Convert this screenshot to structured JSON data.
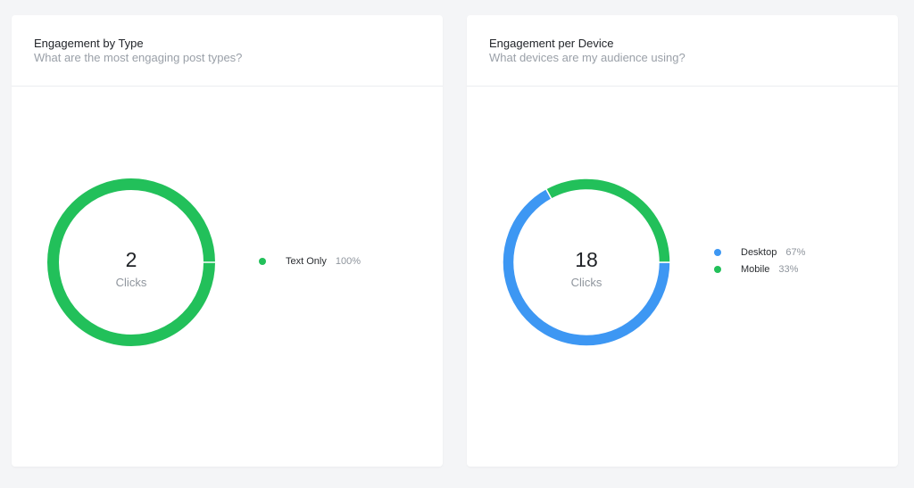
{
  "cards": [
    {
      "title": "Engagement by Type",
      "subtitle": "What are the most engaging post types?",
      "center_value": "2",
      "center_label": "Clicks",
      "legend": [
        {
          "label": "Text Only",
          "pct": "100%",
          "color": "#22c05a"
        }
      ]
    },
    {
      "title": "Engagement per Device",
      "subtitle": "What devices are my audience using?",
      "center_value": "18",
      "center_label": "Clicks",
      "legend": [
        {
          "label": "Desktop",
          "pct": "67%",
          "color": "#3d97f3"
        },
        {
          "label": "Mobile",
          "pct": "33%",
          "color": "#22c05a"
        }
      ]
    }
  ],
  "chart_data": [
    {
      "type": "pie",
      "title": "Engagement by Type",
      "categories": [
        "Text Only"
      ],
      "values": [
        100
      ],
      "total": 2,
      "total_label": "Clicks"
    },
    {
      "type": "pie",
      "title": "Engagement per Device",
      "categories": [
        "Desktop",
        "Mobile"
      ],
      "values": [
        67,
        33
      ],
      "total": 18,
      "total_label": "Clicks"
    }
  ]
}
